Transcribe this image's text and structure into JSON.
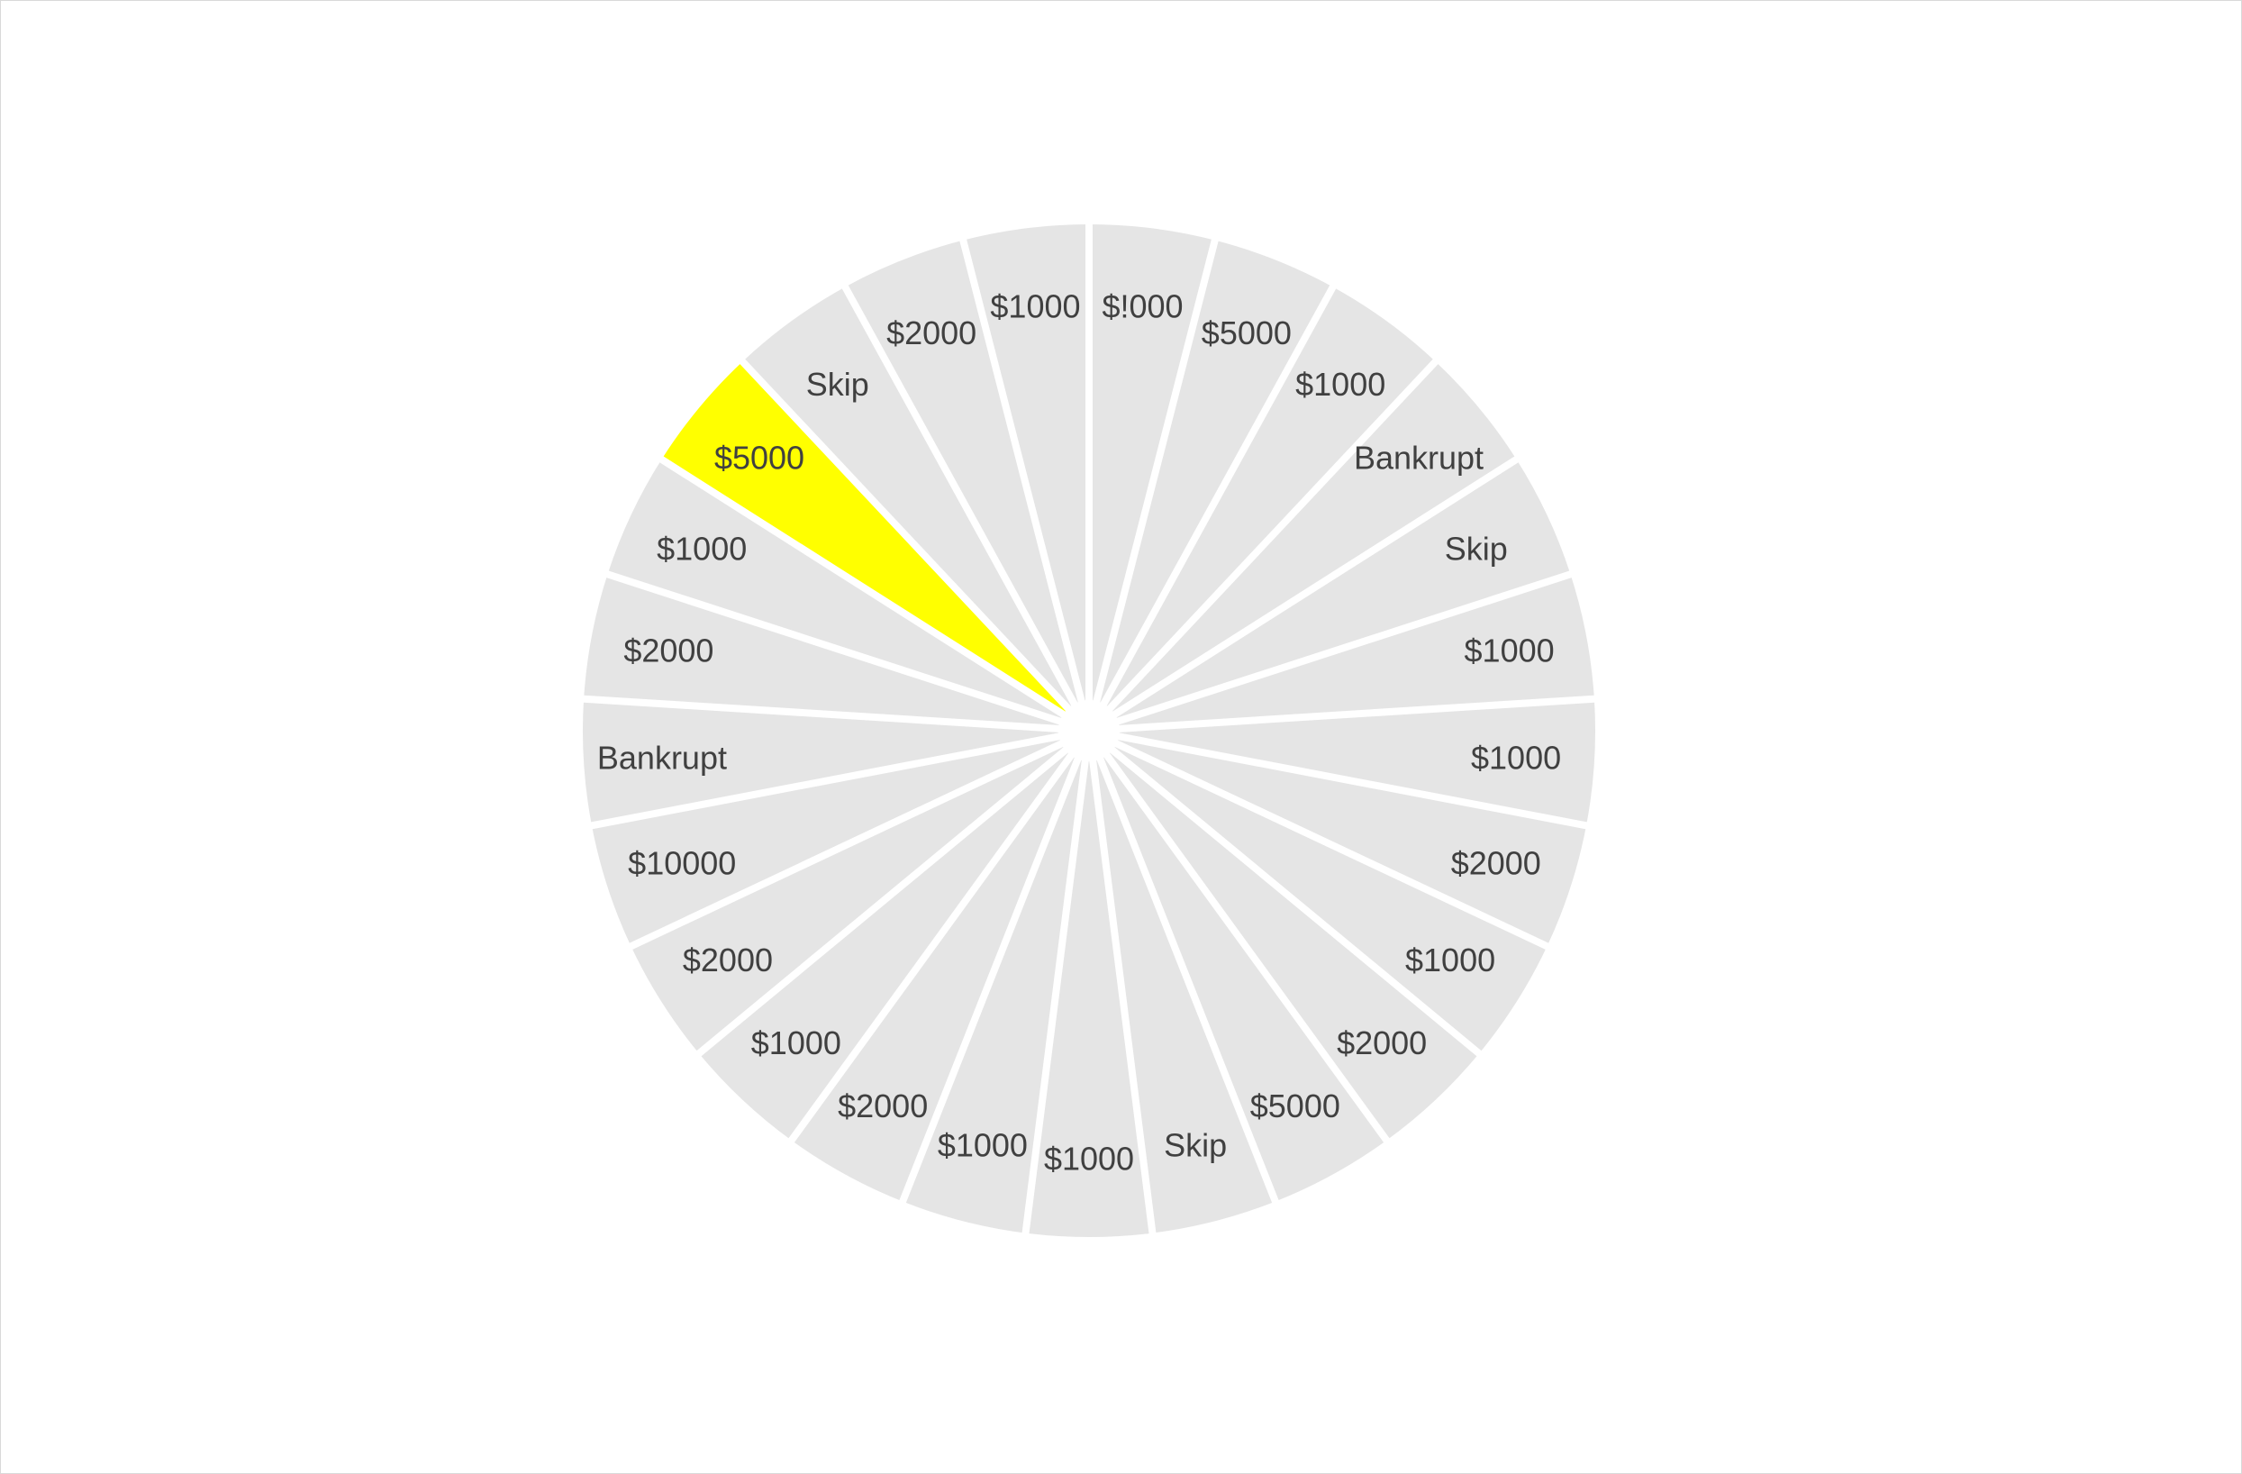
{
  "wheel": {
    "colors": {
      "segment": "#e5e5e5",
      "highlight": "#ffff00",
      "divider": "#ffffff",
      "text": "#404040",
      "border": "#d9d9d9"
    },
    "highlighted_index": 21,
    "segments": [
      {
        "label": "$!000"
      },
      {
        "label": "$5000"
      },
      {
        "label": "$1000"
      },
      {
        "label": "Bankrupt"
      },
      {
        "label": "Skip"
      },
      {
        "label": "$1000"
      },
      {
        "label": "$1000"
      },
      {
        "label": "$2000"
      },
      {
        "label": "$1000"
      },
      {
        "label": "$2000"
      },
      {
        "label": "$5000"
      },
      {
        "label": "Skip"
      },
      {
        "label": "$1000"
      },
      {
        "label": "$1000"
      },
      {
        "label": "$2000"
      },
      {
        "label": "$1000"
      },
      {
        "label": "$2000"
      },
      {
        "label": "$10000"
      },
      {
        "label": "Bankrupt"
      },
      {
        "label": "$2000"
      },
      {
        "label": "$1000"
      },
      {
        "label": "$5000"
      },
      {
        "label": "Skip"
      },
      {
        "label": "$2000"
      },
      {
        "label": "$1000"
      }
    ]
  }
}
